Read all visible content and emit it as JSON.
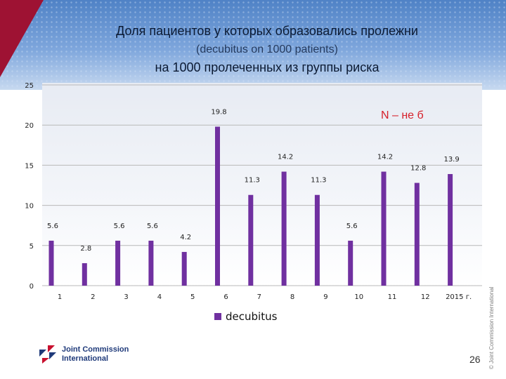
{
  "slide": {
    "title_line1": "Доля пациентов у которых образовались пролежни",
    "title_line2": "(decubitus on 1000 patients)",
    "title_line3": "на 1000 пролеченных из группы риска",
    "annotation": "N – не б",
    "copyright": "© Joint Commission International",
    "logo_line1": "Joint Commission",
    "logo_line2": "International",
    "page_number": "26"
  },
  "colors": {
    "bar": "#7030a0",
    "header": "#4f82c6",
    "accent_red": "#9e1233",
    "annotation": "#d6202a"
  },
  "chart_data": {
    "type": "bar",
    "categories": [
      "1",
      "2",
      "3",
      "4",
      "5",
      "6",
      "7",
      "8",
      "9",
      "10",
      "11",
      "12",
      "2015 г."
    ],
    "series": [
      {
        "name": "decubitus",
        "values": [
          5.6,
          2.8,
          5.6,
          5.6,
          4.2,
          19.8,
          11.3,
          14.2,
          11.3,
          5.6,
          14.2,
          12.8,
          13.9
        ]
      }
    ],
    "data_labels": [
      "5.6",
      "2.8",
      "5.6",
      "5.6",
      "4.2",
      "19.8",
      "11.3",
      "14.2",
      "11.3",
      "5.6",
      "14.2",
      "12.8",
      "13.9"
    ],
    "y_ticks": [
      "0",
      "5",
      "10",
      "15",
      "20",
      "25"
    ],
    "ylim": [
      0,
      25
    ],
    "grid": true,
    "legend_position": "bottom"
  }
}
